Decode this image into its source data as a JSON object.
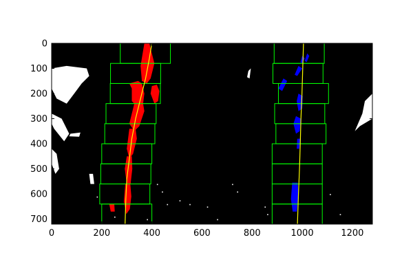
{
  "chart_data": {
    "type": "image-overlay",
    "title": "",
    "xlabel": "",
    "ylabel": "",
    "xlim": [
      0,
      1280
    ],
    "ylim": [
      720,
      0
    ],
    "x_ticks": [
      0,
      200,
      400,
      600,
      800,
      1000,
      1200
    ],
    "y_ticks": [
      0,
      100,
      200,
      300,
      400,
      500,
      600,
      700
    ],
    "background_color": "#000000",
    "colors": {
      "left_lane_pixels": "#ff0000",
      "right_lane_pixels": "#0000ff",
      "search_windows": "#00ff00",
      "fitted_lines": "#ffff00",
      "other_pixels": "#ffffff"
    },
    "window_height": 80,
    "left_windows": [
      {
        "x0": 274,
        "x1": 474,
        "y0": 0,
        "y1": 80
      },
      {
        "x0": 235,
        "x1": 435,
        "y0": 80,
        "y1": 160
      },
      {
        "x0": 234,
        "x1": 434,
        "y0": 160,
        "y1": 240
      },
      {
        "x0": 217,
        "x1": 417,
        "y0": 240,
        "y1": 320
      },
      {
        "x0": 212,
        "x1": 412,
        "y0": 320,
        "y1": 400
      },
      {
        "x0": 200,
        "x1": 400,
        "y0": 400,
        "y1": 480
      },
      {
        "x0": 196,
        "x1": 396,
        "y0": 480,
        "y1": 560
      },
      {
        "x0": 192,
        "x1": 392,
        "y0": 560,
        "y1": 640
      },
      {
        "x0": 200,
        "x1": 400,
        "y0": 640,
        "y1": 720
      }
    ],
    "right_windows": [
      {
        "x0": 888,
        "x1": 1088,
        "y0": 0,
        "y1": 80
      },
      {
        "x0": 883,
        "x1": 1083,
        "y0": 80,
        "y1": 160
      },
      {
        "x0": 905,
        "x1": 1105,
        "y0": 160,
        "y1": 240
      },
      {
        "x0": 890,
        "x1": 1090,
        "y0": 240,
        "y1": 320
      },
      {
        "x0": 895,
        "x1": 1095,
        "y0": 320,
        "y1": 400
      },
      {
        "x0": 880,
        "x1": 1080,
        "y0": 400,
        "y1": 480
      },
      {
        "x0": 880,
        "x1": 1080,
        "y0": 480,
        "y1": 560
      },
      {
        "x0": 880,
        "x1": 1080,
        "y0": 560,
        "y1": 640
      },
      {
        "x0": 880,
        "x1": 1080,
        "y0": 640,
        "y1": 720
      }
    ],
    "left_fit_line": {
      "x": [
        400,
        390,
        375,
        355,
        335,
        320,
        310,
        300,
        296,
        293
      ],
      "y": [
        0,
        60,
        140,
        220,
        300,
        380,
        460,
        540,
        620,
        720
      ]
    },
    "right_fit_line": {
      "x": [
        1005,
        1002,
        999,
        995,
        992,
        989,
        985,
        981
      ],
      "y": [
        0,
        100,
        200,
        300,
        400,
        500,
        600,
        720
      ]
    },
    "left_lane_blobs": [
      {
        "x": [
          370,
          390,
          400,
          410,
          395,
          380,
          360,
          355
        ],
        "y": [
          0,
          0,
          40,
          80,
          140,
          160,
          150,
          90
        ]
      },
      {
        "x": [
          310,
          345,
          360,
          370,
          365,
          330,
          320,
          320
        ],
        "y": [
          160,
          150,
          160,
          200,
          240,
          240,
          230,
          180
        ]
      },
      {
        "x": [
          400,
          420,
          430,
          425,
          410,
          395
        ],
        "y": [
          170,
          165,
          190,
          230,
          240,
          200
        ]
      },
      {
        "x": [
          330,
          365,
          370,
          350,
          330,
          310
        ],
        "y": [
          240,
          240,
          270,
          330,
          350,
          320
        ]
      },
      {
        "x": [
          310,
          335,
          340,
          325,
          310,
          300
        ],
        "y": [
          340,
          340,
          380,
          440,
          460,
          420
        ]
      },
      {
        "x": [
          300,
          320,
          322,
          315,
          300,
          292
        ],
        "y": [
          450,
          450,
          500,
          560,
          560,
          500
        ]
      },
      {
        "x": [
          294,
          314,
          318,
          312,
          298,
          288
        ],
        "y": [
          560,
          560,
          610,
          660,
          680,
          630
        ]
      },
      {
        "x": [
          230,
          250,
          252,
          236
        ],
        "y": [
          640,
          640,
          670,
          670
        ]
      }
    ],
    "right_lane_blobs": [
      {
        "x": [
          1000,
          1010,
          1000,
          993
        ],
        "y": [
          50,
          60,
          80,
          75
        ]
      },
      {
        "x": [
          1020,
          1028,
          1018,
          1010
        ],
        "y": [
          40,
          50,
          75,
          70
        ]
      },
      {
        "x": [
          985,
          1000,
          980,
          970
        ],
        "y": [
          90,
          100,
          130,
          125
        ]
      },
      {
        "x": [
          925,
          940,
          920,
          905
        ],
        "y": [
          140,
          150,
          190,
          180
        ]
      },
      {
        "x": [
          985,
          1002,
          1000,
          985,
          978
        ],
        "y": [
          200,
          210,
          260,
          270,
          230
        ]
      },
      {
        "x": [
          975,
          995,
          990,
          975,
          965
        ],
        "y": [
          290,
          300,
          350,
          360,
          320
        ]
      },
      {
        "x": [
          980,
          992,
          988,
          978
        ],
        "y": [
          380,
          380,
          420,
          420
        ]
      },
      {
        "x": [
          960,
          982,
          985,
          978,
          962,
          955
        ],
        "y": [
          555,
          555,
          600,
          670,
          670,
          620
        ]
      }
    ],
    "other_blobs": [
      {
        "x": [
          0,
          60,
          140,
          150,
          120,
          90,
          60,
          20,
          0
        ],
        "y": [
          100,
          90,
          100,
          130,
          160,
          200,
          240,
          220,
          180
        ]
      },
      {
        "x": [
          0,
          40,
          70,
          50,
          10,
          0
        ],
        "y": [
          280,
          300,
          360,
          390,
          340,
          320
        ]
      },
      {
        "x": [
          0,
          20,
          30,
          15,
          0
        ],
        "y": [
          420,
          440,
          500,
          520,
          480
        ]
      },
      {
        "x": [
          75,
          115,
          110,
          70
        ],
        "y": [
          360,
          355,
          372,
          370
        ]
      },
      {
        "x": [
          150,
          165,
          170,
          155
        ],
        "y": [
          520,
          520,
          560,
          560
        ]
      },
      {
        "x": [
          1250,
          1280,
          1280,
          1230,
          1210,
          1240
        ],
        "y": [
          230,
          200,
          300,
          330,
          350,
          280
        ]
      },
      {
        "x": [
          785,
          795,
          790,
          780
        ],
        "y": [
          110,
          100,
          140,
          135
        ]
      }
    ],
    "specks": [
      {
        "x": 720,
        "y": 560
      },
      {
        "x": 740,
        "y": 590
      },
      {
        "x": 460,
        "y": 640
      },
      {
        "x": 510,
        "y": 625
      },
      {
        "x": 420,
        "y": 560
      },
      {
        "x": 440,
        "y": 590
      },
      {
        "x": 850,
        "y": 650
      },
      {
        "x": 860,
        "y": 680
      },
      {
        "x": 620,
        "y": 650
      },
      {
        "x": 660,
        "y": 700
      },
      {
        "x": 380,
        "y": 700
      },
      {
        "x": 250,
        "y": 690
      },
      {
        "x": 180,
        "y": 610
      },
      {
        "x": 1150,
        "y": 680
      },
      {
        "x": 1110,
        "y": 600
      },
      {
        "x": 550,
        "y": 640
      }
    ]
  }
}
